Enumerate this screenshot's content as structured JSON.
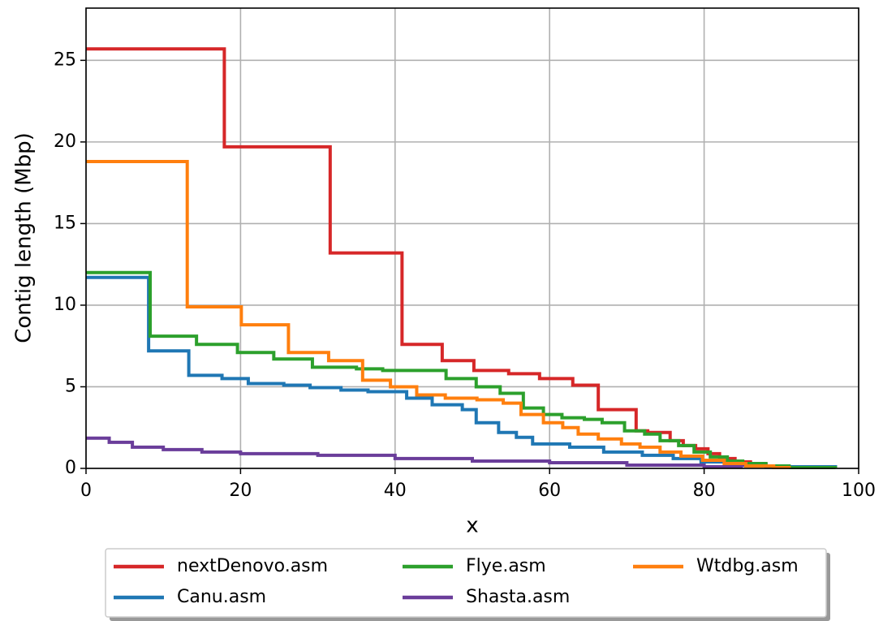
{
  "chart_data": {
    "type": "line",
    "step": "post",
    "xlabel": "x",
    "ylabel": "Contig length (Mbp)",
    "xlim": [
      0,
      100
    ],
    "ylim": [
      0,
      28.2
    ],
    "xticks": [
      0,
      20,
      40,
      60,
      80,
      100
    ],
    "yticks": [
      0,
      5,
      10,
      15,
      20,
      25
    ],
    "grid": true,
    "legend": "lower center",
    "legend_columns": 3,
    "series": [
      {
        "name": "nextDenovo.asm",
        "color": "#d62728",
        "x": [
          0,
          17.9,
          31.6,
          40.9,
          46.1,
          50.2,
          54.7,
          58.7,
          63.0,
          66.3,
          71.2,
          72.7,
          75.6,
          77.3,
          78.9,
          80.5,
          82,
          84,
          86,
          88,
          90,
          91
        ],
        "values": [
          25.7,
          19.7,
          13.2,
          7.6,
          6.6,
          6.0,
          5.8,
          5.5,
          5.1,
          3.6,
          2.3,
          2.2,
          1.7,
          1.4,
          1.2,
          0.9,
          0.6,
          0.4,
          0.25,
          0.15,
          0.05,
          0
        ]
      },
      {
        "name": "Canu.asm",
        "color": "#1f77b4",
        "x": [
          0,
          8.1,
          13.3,
          17.6,
          21,
          25.6,
          29,
          33,
          36.5,
          41.5,
          44.8,
          48.7,
          50.5,
          53.4,
          55.7,
          57.8,
          62.6,
          67,
          72,
          76,
          79.6,
          84,
          88,
          97
        ],
        "values": [
          11.7,
          7.2,
          5.7,
          5.5,
          5.2,
          5.1,
          4.95,
          4.8,
          4.7,
          4.3,
          3.9,
          3.6,
          2.8,
          2.2,
          1.9,
          1.5,
          1.3,
          1.0,
          0.8,
          0.6,
          0.4,
          0.2,
          0.1,
          0
        ]
      },
      {
        "name": "Flye.asm",
        "color": "#2ca02c",
        "x": [
          0,
          8.3,
          14.3,
          19.6,
          24.3,
          29.3,
          35,
          38.4,
          46.6,
          50.5,
          53.6,
          56.6,
          59.2,
          61.6,
          64.5,
          66.8,
          69.7,
          72.3,
          74.3,
          76.7,
          78.7,
          80.8,
          83,
          85,
          88,
          91,
          97
        ],
        "values": [
          12.0,
          8.1,
          7.6,
          7.1,
          6.7,
          6.2,
          6.1,
          6.0,
          5.5,
          5.0,
          4.6,
          3.7,
          3.3,
          3.1,
          3.0,
          2.8,
          2.3,
          2.1,
          1.7,
          1.4,
          1.0,
          0.7,
          0.45,
          0.3,
          0.15,
          0.05,
          0.02
        ]
      },
      {
        "name": "Shasta.asm",
        "color": "#6a3d9a",
        "x": [
          0,
          3,
          6,
          10,
          15,
          20,
          30,
          40,
          50,
          60,
          70,
          80,
          85
        ],
        "values": [
          1.85,
          1.6,
          1.3,
          1.15,
          1.0,
          0.9,
          0.8,
          0.6,
          0.45,
          0.35,
          0.2,
          0.1,
          0.08
        ]
      },
      {
        "name": "Wtdbg.asm",
        "color": "#ff7f0e",
        "x": [
          0,
          13.1,
          20.1,
          26.2,
          31.4,
          35.8,
          39.4,
          42.8,
          46.5,
          50.6,
          54,
          56.3,
          59.2,
          61.7,
          63.7,
          66.3,
          69.3,
          71.7,
          74.3,
          77,
          79.8,
          82.6,
          85.4,
          89,
          91
        ],
        "values": [
          18.8,
          9.9,
          8.8,
          7.1,
          6.6,
          5.4,
          5.0,
          4.5,
          4.3,
          4.2,
          4.0,
          3.3,
          2.8,
          2.5,
          2.1,
          1.8,
          1.5,
          1.3,
          1.0,
          0.75,
          0.5,
          0.3,
          0.15,
          0.05,
          0
        ]
      }
    ]
  }
}
